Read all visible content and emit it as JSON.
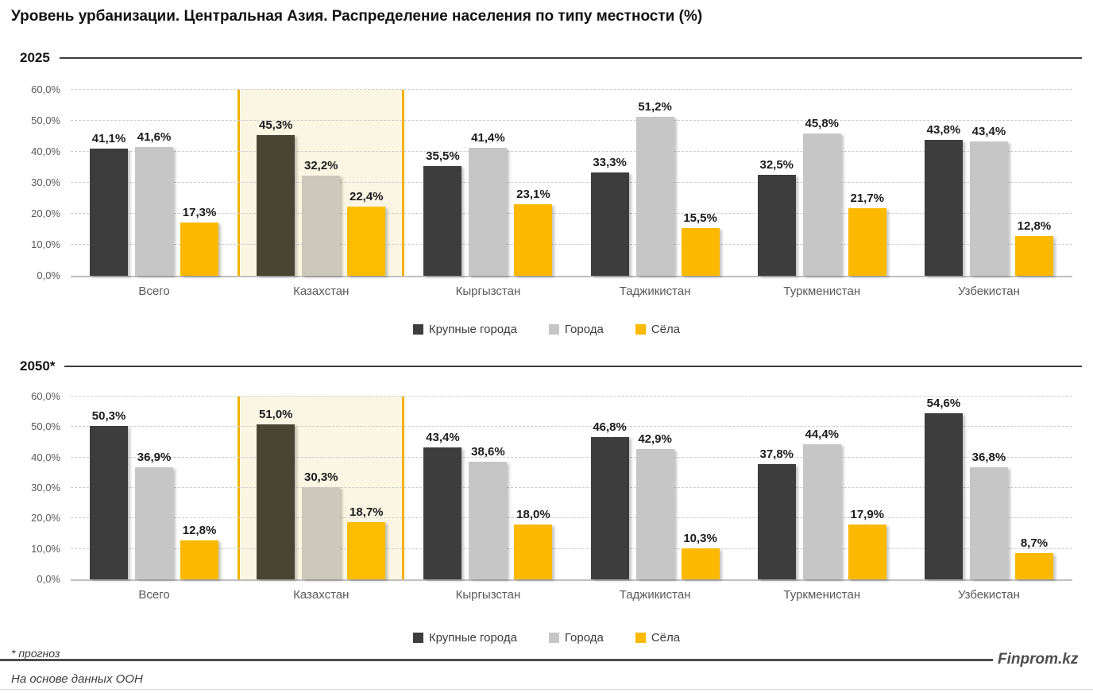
{
  "title": "Уровень урбанизации. Центральная Азия. Распределение населения по типу местности (%)",
  "footnote": "* прогноз",
  "source": "На основе данных ООН",
  "brand": "Finprom.kz",
  "legend": [
    {
      "label": "Крупные города",
      "color": "#3d3d3d"
    },
    {
      "label": "Города",
      "color": "#c6c6c6"
    },
    {
      "label": "Сёла",
      "color": "#fcb900"
    }
  ],
  "colors": {
    "series": [
      "#3d3d3d",
      "#c6c6c6",
      "#fcb900"
    ],
    "series_highlight": [
      "#4a4433",
      "#ccc8bb",
      "#fcbd00"
    ],
    "highlight_bg": "#faf6e3",
    "highlight_border": "#f2b100",
    "gridline": "#cdcdcd",
    "axis_text": "#595959"
  },
  "chart_data": [
    {
      "type": "bar",
      "title": "2025",
      "categories": [
        "Всего",
        "Казахстан",
        "Кыргызстан",
        "Таджикистан",
        "Туркменистан",
        "Узбекистан"
      ],
      "series": [
        {
          "name": "Крупные города",
          "values": [
            41.1,
            45.3,
            35.5,
            33.3,
            32.5,
            43.8
          ]
        },
        {
          "name": "Города",
          "values": [
            41.6,
            32.2,
            41.4,
            51.2,
            45.8,
            43.4
          ]
        },
        {
          "name": "Сёла",
          "values": [
            17.3,
            22.4,
            23.1,
            15.5,
            21.7,
            12.8
          ]
        }
      ],
      "ylim": [
        0,
        60
      ],
      "yticks": [
        "0,0%",
        "10,0%",
        "20,0%",
        "30,0%",
        "40,0%",
        "50,0%",
        "60,0%"
      ],
      "grid": "dashed-horizontal",
      "highlight_category": "Казахстан",
      "legend_position": "bottom",
      "data_labels": "above-bars, comma decimal, e.g. 41,1%"
    },
    {
      "type": "bar",
      "title": "2050*",
      "categories": [
        "Всего",
        "Казахстан",
        "Кыргызстан",
        "Таджикистан",
        "Туркменистан",
        "Узбекистан"
      ],
      "series": [
        {
          "name": "Крупные города",
          "values": [
            50.3,
            51.0,
            43.4,
            46.8,
            37.8,
            54.6
          ]
        },
        {
          "name": "Города",
          "values": [
            36.9,
            30.3,
            38.6,
            42.9,
            44.4,
            36.8
          ]
        },
        {
          "name": "Сёла",
          "values": [
            12.8,
            18.7,
            18.0,
            10.3,
            17.9,
            8.7
          ]
        }
      ],
      "ylim": [
        0,
        60
      ],
      "yticks": [
        "0,0%",
        "10,0%",
        "20,0%",
        "30,0%",
        "40,0%",
        "50,0%",
        "60,0%"
      ],
      "grid": "dashed-horizontal",
      "highlight_category": "Казахстан",
      "legend_position": "bottom",
      "data_labels": "above-bars, comma decimal, e.g. 50,3%"
    }
  ]
}
